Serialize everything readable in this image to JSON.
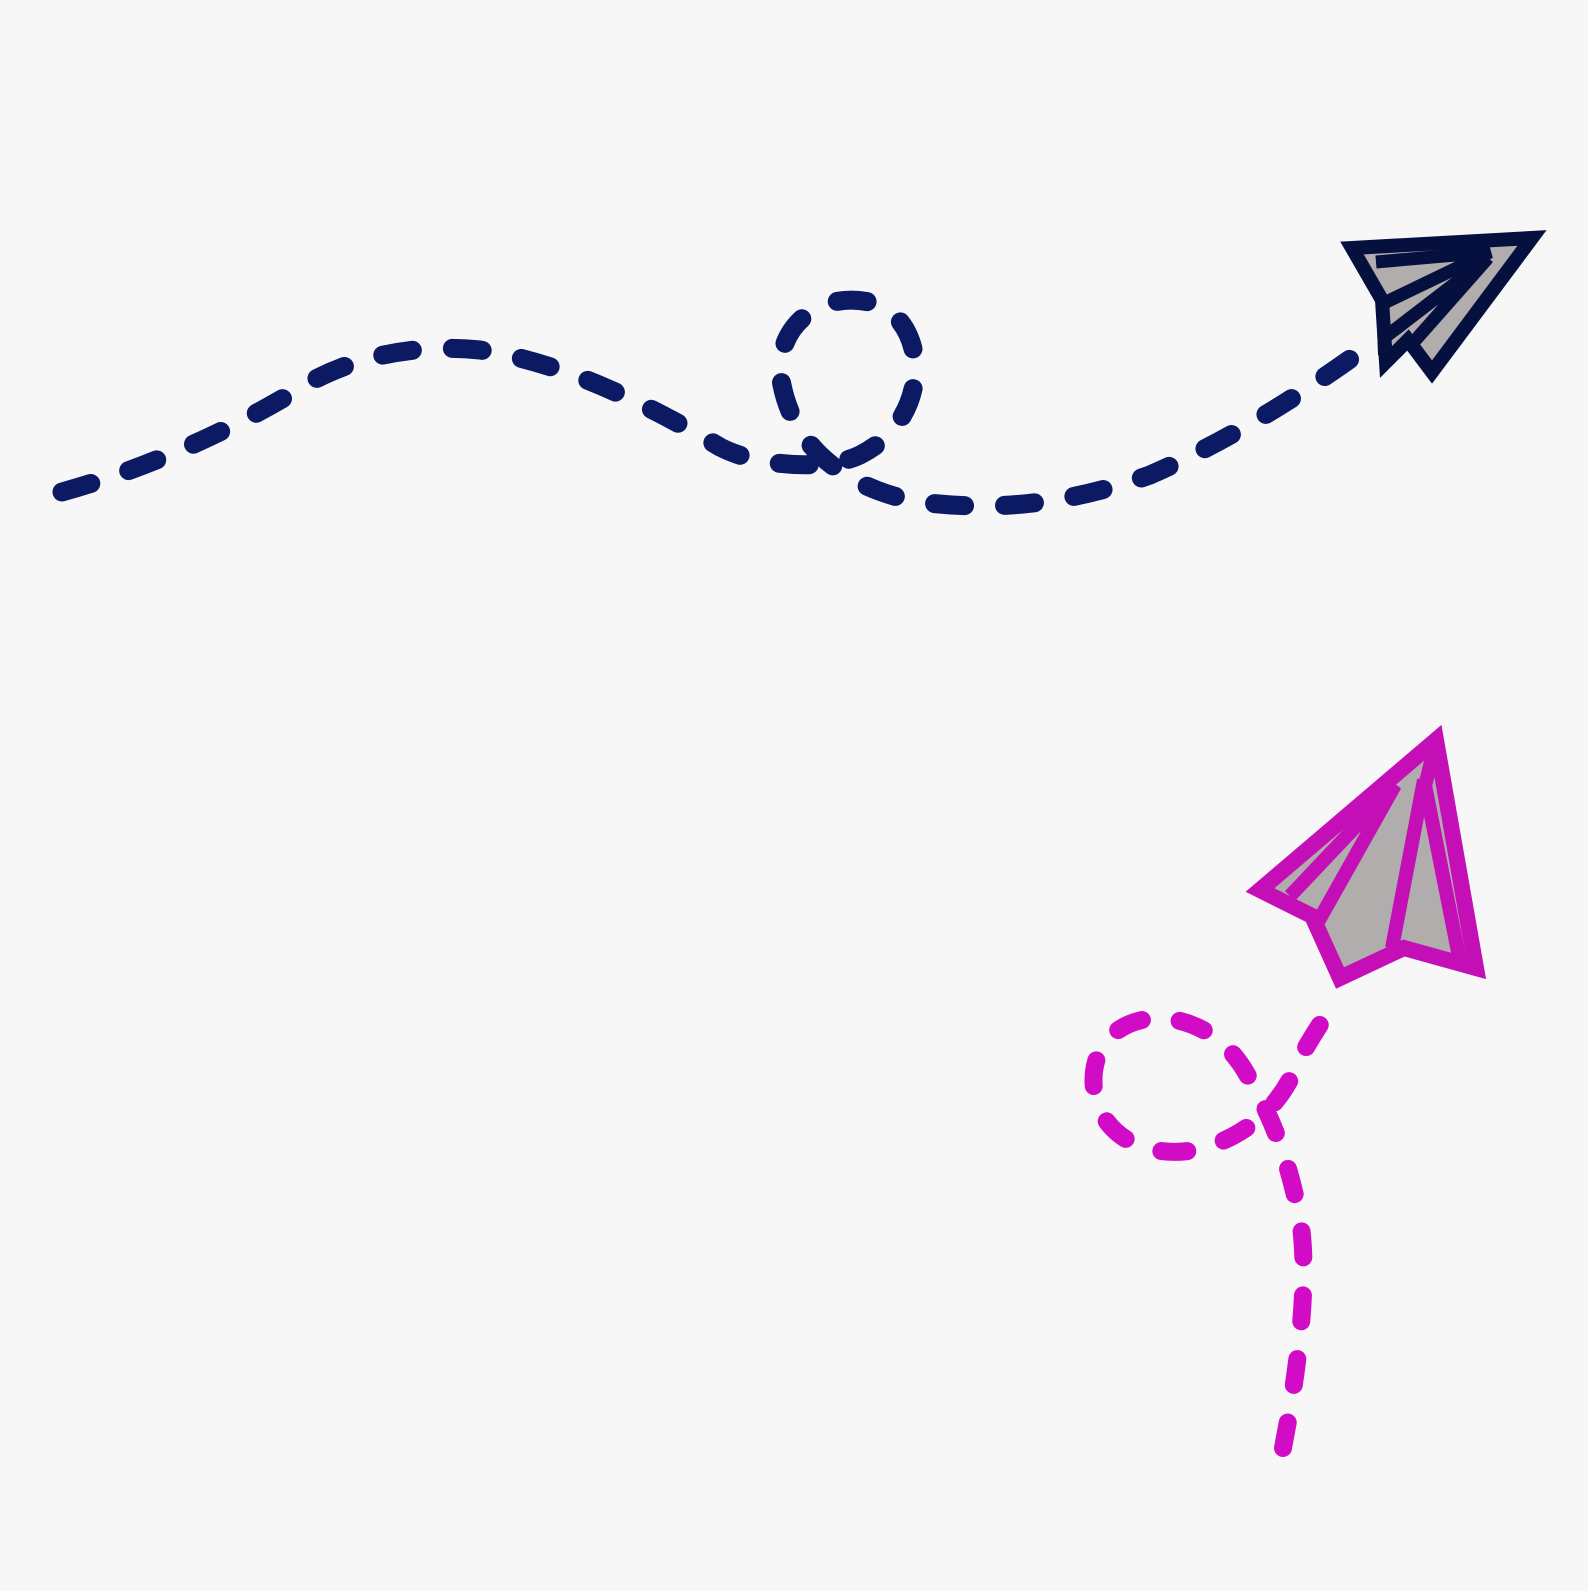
{
  "scene": {
    "background_color": "#f7f7f8",
    "illustrations": [
      {
        "name": "navy-paper-plane",
        "icon": "paper-plane-icon",
        "line_color": "#0b1a63",
        "outline_color": "#06103f",
        "fill_color": "#b1adad",
        "trail": "dashed-loop-trail"
      },
      {
        "name": "magenta-paper-plane",
        "icon": "paper-plane-icon",
        "line_color": "#d20bc6",
        "outline_color": "#c40fb6",
        "fill_color": "#b1adad",
        "trail": "dashed-loop-trail"
      }
    ]
  }
}
